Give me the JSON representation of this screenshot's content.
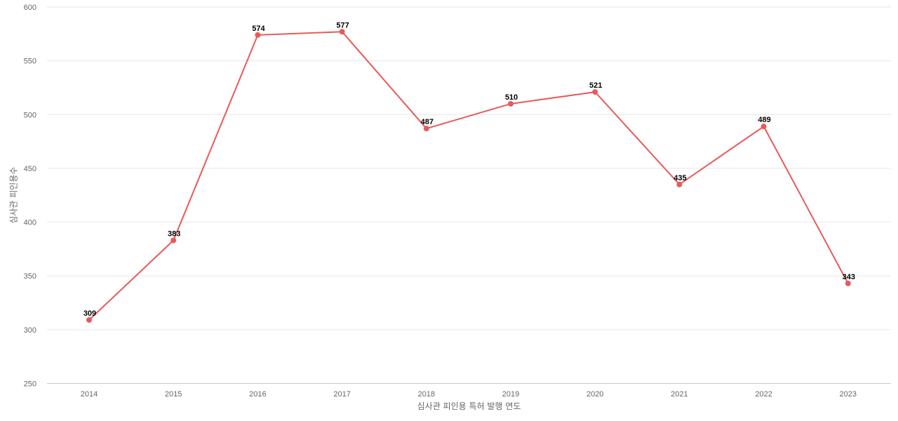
{
  "chart_data": {
    "type": "line",
    "categories": [
      "2014",
      "2015",
      "2016",
      "2017",
      "2018",
      "2019",
      "2020",
      "2021",
      "2022",
      "2023"
    ],
    "series": [
      {
        "values": [
          309,
          383,
          574,
          577,
          487,
          510,
          521,
          435,
          489,
          343
        ]
      }
    ],
    "xlabel": "심사관 피인용 특허 발행 연도",
    "ylabel": "심사관 피인용수",
    "ylim": [
      250,
      600
    ],
    "yticks": [
      250,
      300,
      350,
      400,
      450,
      500,
      550,
      600
    ],
    "grid": true,
    "data_labels": true
  },
  "colors": {
    "series": "#e85a5a",
    "grid": "#e6e6e6",
    "axis_text": "#666666",
    "label_text": "#000000"
  }
}
